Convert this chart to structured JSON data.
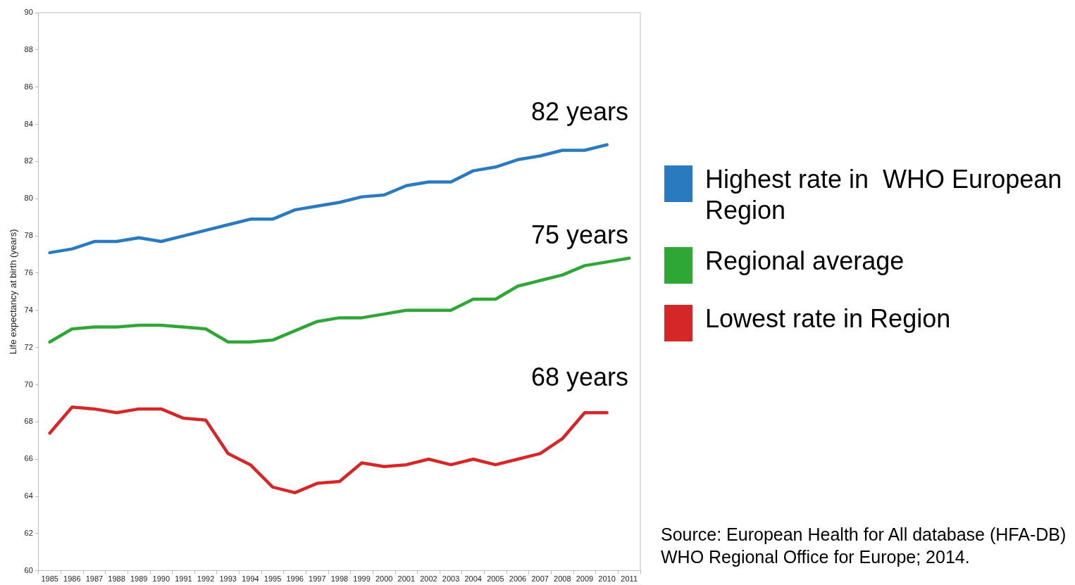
{
  "chart_data": {
    "type": "line",
    "ylabel": "Life expectancy at birth (years)",
    "categories": [
      "1985",
      "1986",
      "1987",
      "1988",
      "1989",
      "1990",
      "1991",
      "1992",
      "1993",
      "1994",
      "1995",
      "1996",
      "1997",
      "1998",
      "1999",
      "2000",
      "2001",
      "2002",
      "2003",
      "2004",
      "2005",
      "2006",
      "2007",
      "2008",
      "2009",
      "2010",
      "2011"
    ],
    "series": [
      {
        "name": "Highest rate in  WHO European Region",
        "color": "#2a7abf",
        "values": [
          77.1,
          77.3,
          77.7,
          77.7,
          77.9,
          77.7,
          78.0,
          78.3,
          78.6,
          78.9,
          78.9,
          79.4,
          79.6,
          79.8,
          80.1,
          80.2,
          80.7,
          80.9,
          80.9,
          81.5,
          81.7,
          82.1,
          82.3,
          82.6,
          82.6,
          82.9,
          null
        ]
      },
      {
        "name": "Regional average",
        "color": "#2ea737",
        "values": [
          72.3,
          73.0,
          73.1,
          73.1,
          73.2,
          73.2,
          73.1,
          73.0,
          72.3,
          72.3,
          72.4,
          72.9,
          73.4,
          73.6,
          73.6,
          73.8,
          74.0,
          74.0,
          74.0,
          74.6,
          74.6,
          75.3,
          75.6,
          75.9,
          76.4,
          76.6,
          76.8
        ]
      },
      {
        "name": "Lowest rate in Region",
        "color": "#d62728",
        "values": [
          67.4,
          68.8,
          68.7,
          68.5,
          68.7,
          68.7,
          68.2,
          68.1,
          66.3,
          65.7,
          64.5,
          64.2,
          64.7,
          64.8,
          65.8,
          65.6,
          65.7,
          66.0,
          65.7,
          66.0,
          65.7,
          66.0,
          66.3,
          67.1,
          68.5,
          68.5,
          null
        ]
      }
    ],
    "ylim": [
      60,
      90
    ],
    "yticks": [
      60,
      62,
      64,
      66,
      68,
      70,
      72,
      74,
      76,
      78,
      80,
      82,
      84,
      86,
      88,
      90
    ],
    "marker": "none",
    "line_style": "solid",
    "legend": "right",
    "annotations": [
      "82 years",
      "75 years",
      "68 years",
      "Source: European Health for All database (HFA-DB)\nWHO Regional Office for Europe; 2014."
    ]
  }
}
